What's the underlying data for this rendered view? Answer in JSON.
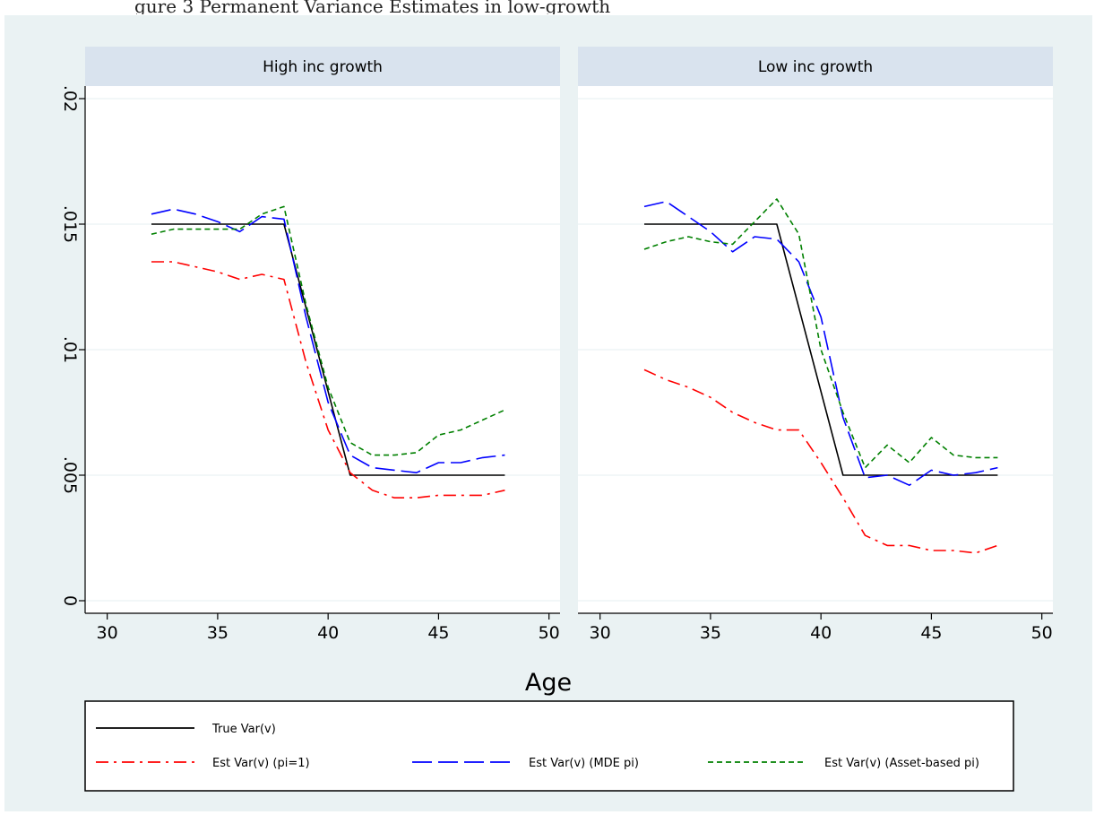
{
  "page": {
    "caption_fragment": "gure 3 Permanent Variance Estimates in low-growth"
  },
  "colors": {
    "frame_bg": "#eaf2f3",
    "panel_header_bg": "#d9e3ee",
    "grid": "#eaf2f3",
    "true": "#000000",
    "pi1": "#ff0000",
    "mde": "#0000ff",
    "asset": "#008000"
  },
  "chart_data": {
    "type": "line",
    "xlabel": "Age",
    "ylabel": "",
    "xlim": [
      29,
      50.5
    ],
    "ylim": [
      -0.0005,
      0.0205
    ],
    "xticks": [
      30,
      35,
      40,
      45,
      50
    ],
    "yticks": [
      0,
      0.005,
      0.01,
      0.015,
      0.02
    ],
    "ytick_labels": [
      "0",
      ".005",
      ".01",
      ".015",
      ".02"
    ],
    "grid": "horizontal",
    "legend_position": "bottom",
    "legend": [
      {
        "label": "True Var(v)",
        "style": "solid",
        "color": "#000000"
      },
      {
        "label": "Est Var(v) (pi=1)",
        "style": "dashdot",
        "color": "#ff0000"
      },
      {
        "label": "Est Var(v) (MDE pi)",
        "style": "longdash",
        "color": "#0000ff"
      },
      {
        "label": "Est Var(v) (Asset-based pi)",
        "style": "shortdash",
        "color": "#008000"
      }
    ],
    "panels": [
      {
        "title": "High inc growth",
        "series": [
          {
            "name": "True Var(v)",
            "style": "solid",
            "color": "#000000",
            "x": [
              32,
              38,
              41,
              48
            ],
            "y": [
              0.015,
              0.015,
              0.005,
              0.005
            ]
          },
          {
            "name": "Est Var(v) (pi=1)",
            "style": "dashdot",
            "color": "#ff0000",
            "x": [
              32,
              33,
              34,
              35,
              36,
              37,
              38,
              39,
              40,
              41,
              42,
              43,
              44,
              45,
              46,
              47,
              48
            ],
            "y": [
              0.0135,
              0.0135,
              0.0133,
              0.0131,
              0.0128,
              0.013,
              0.0128,
              0.0095,
              0.0068,
              0.0051,
              0.0044,
              0.0041,
              0.0041,
              0.0042,
              0.0042,
              0.0042,
              0.0044
            ]
          },
          {
            "name": "Est Var(v) (MDE pi)",
            "style": "longdash",
            "color": "#0000ff",
            "x": [
              32,
              33,
              34,
              35,
              36,
              37,
              38,
              39,
              40,
              41,
              42,
              43,
              44,
              45,
              46,
              47,
              48
            ],
            "y": [
              0.0154,
              0.0156,
              0.0154,
              0.0151,
              0.0147,
              0.0153,
              0.0152,
              0.0113,
              0.0079,
              0.0058,
              0.0053,
              0.0052,
              0.0051,
              0.0055,
              0.0055,
              0.0057,
              0.0058
            ]
          },
          {
            "name": "Est Var(v) (Asset-based pi)",
            "style": "shortdash",
            "color": "#008000",
            "x": [
              32,
              33,
              34,
              35,
              36,
              37,
              38,
              39,
              40,
              41,
              42,
              43,
              44,
              45,
              46,
              47,
              48
            ],
            "y": [
              0.0146,
              0.0148,
              0.0148,
              0.0148,
              0.0148,
              0.0154,
              0.0157,
              0.0118,
              0.0085,
              0.0063,
              0.0058,
              0.0058,
              0.0059,
              0.0066,
              0.0068,
              0.0072,
              0.0076
            ]
          }
        ]
      },
      {
        "title": "Low inc growth",
        "series": [
          {
            "name": "True Var(v)",
            "style": "solid",
            "color": "#000000",
            "x": [
              32,
              38,
              41,
              48
            ],
            "y": [
              0.015,
              0.015,
              0.005,
              0.005
            ]
          },
          {
            "name": "Est Var(v) (pi=1)",
            "style": "dashdot",
            "color": "#ff0000",
            "x": [
              32,
              33,
              34,
              35,
              36,
              37,
              38,
              39,
              40,
              41,
              42,
              43,
              44,
              45,
              46,
              47,
              48
            ],
            "y": [
              0.0092,
              0.0088,
              0.0085,
              0.0081,
              0.0075,
              0.0071,
              0.0068,
              0.0068,
              0.0055,
              0.0041,
              0.0026,
              0.0022,
              0.0022,
              0.002,
              0.002,
              0.0019,
              0.0022
            ]
          },
          {
            "name": "Est Var(v) (MDE pi)",
            "style": "longdash",
            "color": "#0000ff",
            "x": [
              32,
              33,
              34,
              35,
              36,
              37,
              38,
              39,
              40,
              41,
              42,
              43,
              44,
              45,
              46,
              47,
              48
            ],
            "y": [
              0.0157,
              0.0159,
              0.0153,
              0.0147,
              0.0139,
              0.0145,
              0.0144,
              0.0135,
              0.0113,
              0.0073,
              0.0049,
              0.005,
              0.0046,
              0.0052,
              0.005,
              0.0051,
              0.0053
            ]
          },
          {
            "name": "Est Var(v) (Asset-based pi)",
            "style": "shortdash",
            "color": "#008000",
            "x": [
              32,
              33,
              34,
              35,
              36,
              37,
              38,
              39,
              40,
              41,
              42,
              43,
              44,
              45,
              46,
              47,
              48
            ],
            "y": [
              0.014,
              0.0143,
              0.0145,
              0.0143,
              0.0142,
              0.0151,
              0.016,
              0.0146,
              0.01,
              0.0075,
              0.0053,
              0.0062,
              0.0055,
              0.0065,
              0.0058,
              0.0057,
              0.0057
            ]
          }
        ]
      }
    ]
  }
}
